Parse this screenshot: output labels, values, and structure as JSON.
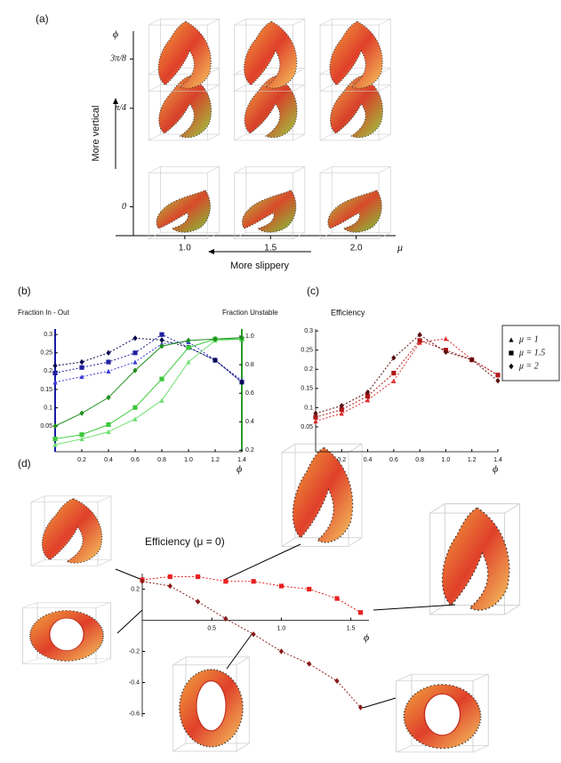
{
  "chart_data": [
    {
      "type": "image-grid",
      "label": "(a)",
      "ylabel": "ϕ",
      "xlabel": "μ",
      "annotations": [
        "More vertical",
        "More slippery"
      ],
      "xlim": [
        0.7,
        2.23
      ],
      "ylim": [
        -0.23,
        1.4
      ],
      "xticks": [
        {
          "value": 1,
          "label": "1.0"
        },
        1.5,
        {
          "value": 2,
          "label": "2.0"
        }
      ],
      "yticks": [
        0,
        {
          "value": 0.785,
          "label": "π/4"
        },
        {
          "value": 1.178,
          "label": "3π/8"
        }
      ]
    },
    {
      "type": "line",
      "label": "(b)",
      "ylabel": "Fraction In - Out",
      "y2label": "Fraction Unstable",
      "xlabel": "ϕ",
      "x": [
        0,
        0.2,
        0.4,
        0.6,
        0.8,
        1.0,
        1.2,
        1.4
      ],
      "xlim": [
        0,
        1.4
      ],
      "xticks": [
        0.2,
        0.4,
        0.6,
        0.8,
        {
          "value": 1,
          "label": "1.0"
        },
        1.2,
        1.4
      ],
      "ylim": [
        -0.02,
        0.315
      ],
      "yticks": [
        0.05,
        0.1,
        0.15,
        0.2,
        0.25,
        0.3
      ],
      "y2lim": [
        0.19,
        1.05
      ],
      "y2ticks": [
        0.2,
        0.4,
        0.6,
        0.8,
        {
          "value": 1,
          "label": "1.0"
        }
      ],
      "y_axis_color": "#1a1aa8",
      "y2_axis_color": "#2a9a2a",
      "series": [
        {
          "color": "#3a3ad8",
          "marker": "triangle",
          "dashed": true,
          "values": [
            0.17,
            0.185,
            0.2,
            0.225,
            0.275,
            0.28,
            0.23,
            0.175
          ]
        },
        {
          "color": "#1f1fa0",
          "marker": "square",
          "dashed": true,
          "values": [
            0.195,
            0.21,
            0.225,
            0.25,
            0.3,
            0.265,
            0.23,
            0.17
          ]
        },
        {
          "color": "#0a0a50",
          "marker": "diamond",
          "dashed": true,
          "values": [
            0.215,
            0.225,
            0.25,
            0.29,
            0.285,
            0.265,
            0.23,
            0.17
          ]
        },
        {
          "color": "#6ee06e",
          "marker": "triangle",
          "dashed": false,
          "axis": "y2",
          "values": [
            0.24,
            0.28,
            0.33,
            0.42,
            0.55,
            0.82,
            0.97,
            0.98
          ]
        },
        {
          "color": "#3cc83c",
          "marker": "square",
          "dashed": false,
          "axis": "y2",
          "values": [
            0.28,
            0.31,
            0.38,
            0.5,
            0.7,
            0.92,
            0.98,
            0.98
          ]
        },
        {
          "color": "#1f8f1f",
          "marker": "diamond",
          "dashed": false,
          "axis": "y2",
          "values": [
            0.37,
            0.46,
            0.57,
            0.76,
            0.93,
            0.97,
            0.98,
            0.99
          ]
        }
      ]
    },
    {
      "type": "line",
      "label": "(c)",
      "title": "Efficiency",
      "xlabel": "ϕ",
      "x": [
        0,
        0.2,
        0.4,
        0.6,
        0.8,
        1.0,
        1.2,
        1.4
      ],
      "xlim": [
        0,
        1.4
      ],
      "xticks": [
        0.2,
        0.4,
        0.6,
        0.8,
        {
          "value": 1,
          "label": "1.0"
        },
        1.2,
        1.4
      ],
      "ylim": [
        -0.015,
        0.305
      ],
      "yticks": [
        0.05,
        0.1,
        0.15,
        0.2,
        0.25,
        0.3
      ],
      "legend": "right",
      "series": [
        {
          "name": "μ = 1",
          "color": "#e02a2a",
          "marker": "triangle",
          "dashed": true,
          "values": [
            0.065,
            0.085,
            0.12,
            0.17,
            0.27,
            0.28,
            0.225,
            0.185
          ]
        },
        {
          "name": "μ = 1.5",
          "color": "#b01818",
          "marker": "square",
          "dashed": true,
          "values": [
            0.075,
            0.095,
            0.13,
            0.19,
            0.275,
            0.25,
            0.225,
            0.185
          ]
        },
        {
          "name": "μ = 2",
          "color": "#5a1010",
          "marker": "diamond",
          "dashed": true,
          "values": [
            0.085,
            0.105,
            0.14,
            0.23,
            0.29,
            0.245,
            0.225,
            0.17
          ]
        }
      ]
    },
    {
      "type": "line",
      "label": "(d)",
      "title": "Efficiency (μ = 0)",
      "xlabel": "ϕ",
      "axes_cross_at_origin": true,
      "x": [
        0,
        0.2,
        0.4,
        0.6,
        0.8,
        1.0,
        1.2,
        1.4,
        1.57
      ],
      "xlim": [
        0,
        1.63
      ],
      "xticks": [
        0.5,
        {
          "value": 1,
          "label": "1.0"
        },
        1.5
      ],
      "ylim": [
        -0.62,
        0.3
      ],
      "yticks": [
        0.2,
        -0.2,
        -0.4,
        -0.6
      ],
      "series": [
        {
          "color": "#e82020",
          "marker": "square",
          "dashed": true,
          "values": [
            0.26,
            0.28,
            0.28,
            0.25,
            0.25,
            0.22,
            0.2,
            0.14,
            0.05
          ]
        },
        {
          "color": "#8b1a1a",
          "marker": "diamond",
          "dashed": true,
          "values": [
            0.25,
            0.22,
            0.12,
            0.01,
            -0.09,
            -0.2,
            -0.28,
            -0.39,
            -0.56
          ]
        }
      ]
    }
  ]
}
